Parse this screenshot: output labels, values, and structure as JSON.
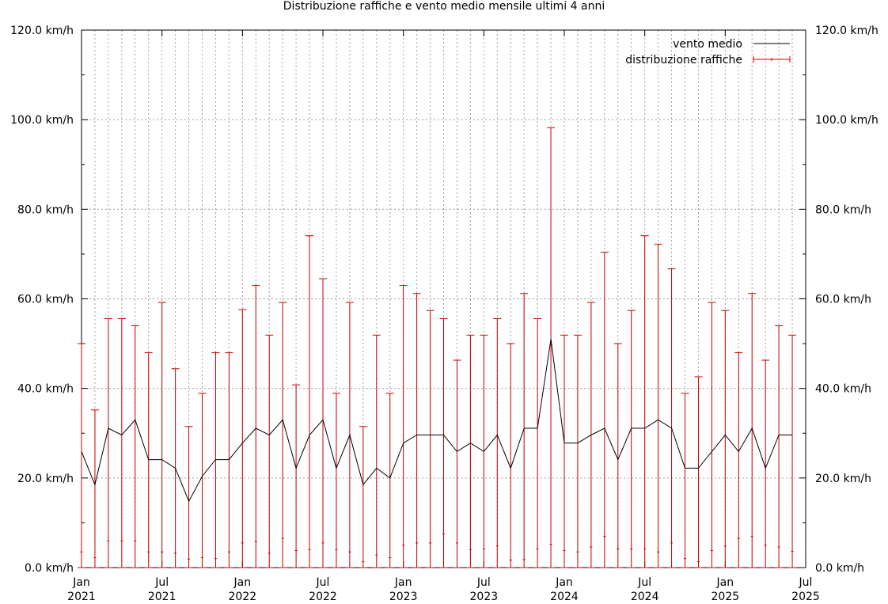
{
  "chart_data": {
    "type": "line",
    "title": "Distribuzione raffiche e vento medio mensile ultimi 4 anni",
    "xlabel": "",
    "ylabel": "",
    "grid": true,
    "legend_position": "top-right",
    "ylim": [
      0,
      120
    ],
    "y_ticks": [
      {
        "value": 0,
        "label": "0.0 km/h"
      },
      {
        "value": 20,
        "label": "20.0 km/h"
      },
      {
        "value": 40,
        "label": "40.0 km/h"
      },
      {
        "value": 60,
        "label": "60.0 km/h"
      },
      {
        "value": 80,
        "label": "80.0 km/h"
      },
      {
        "value": 100,
        "label": "100.0 km/h"
      },
      {
        "value": 120,
        "label": "120.0 km/h"
      }
    ],
    "x_ticks": [
      {
        "month": "2021-01",
        "label1": "Jan",
        "label2": "2021"
      },
      {
        "month": "2021-07",
        "label1": "Jul",
        "label2": "2021"
      },
      {
        "month": "2022-01",
        "label1": "Jan",
        "label2": "2022"
      },
      {
        "month": "2022-07",
        "label1": "Jul",
        "label2": "2022"
      },
      {
        "month": "2023-01",
        "label1": "Jan",
        "label2": "2023"
      },
      {
        "month": "2023-07",
        "label1": "Jul",
        "label2": "2023"
      },
      {
        "month": "2024-01",
        "label1": "Jan",
        "label2": "2024"
      },
      {
        "month": "2024-07",
        "label1": "Jul",
        "label2": "2024"
      },
      {
        "month": "2025-01",
        "label1": "Jan",
        "label2": "2025"
      },
      {
        "month": "2025-07",
        "label1": "Jul",
        "label2": "2025"
      }
    ],
    "x_range": [
      "2021-01",
      "2025-07"
    ],
    "series": [
      {
        "name": "vento medio",
        "color": "#000000",
        "style": "line",
        "x": [
          "2021-01",
          "2021-02",
          "2021-03",
          "2021-04",
          "2021-05",
          "2021-06",
          "2021-07",
          "2021-08",
          "2021-09",
          "2021-10",
          "2021-11",
          "2021-12",
          "2022-01",
          "2022-02",
          "2022-03",
          "2022-04",
          "2022-05",
          "2022-06",
          "2022-07",
          "2022-08",
          "2022-09",
          "2022-10",
          "2022-11",
          "2022-12",
          "2023-01",
          "2023-02",
          "2023-03",
          "2023-04",
          "2023-05",
          "2023-06",
          "2023-07",
          "2023-08",
          "2023-09",
          "2023-10",
          "2023-11",
          "2023-12",
          "2024-01",
          "2024-02",
          "2024-03",
          "2024-04",
          "2024-05",
          "2024-06",
          "2024-07",
          "2024-08",
          "2024-09",
          "2024-10",
          "2024-11",
          "2024-12",
          "2025-01",
          "2025-02",
          "2025-03",
          "2025-04",
          "2025-05",
          "2025-06"
        ],
        "values": [
          25.9,
          18.5,
          31.1,
          29.6,
          33.0,
          24.1,
          24.1,
          22.2,
          14.8,
          20.4,
          24.1,
          24.1,
          27.8,
          31.1,
          29.6,
          33.0,
          22.2,
          29.6,
          33.0,
          22.2,
          29.6,
          18.5,
          22.2,
          20.0,
          27.8,
          29.6,
          29.6,
          29.6,
          25.9,
          27.8,
          25.9,
          29.6,
          22.2,
          31.1,
          31.1,
          51.0,
          27.8,
          27.8,
          29.6,
          31.1,
          24.1,
          31.1,
          31.1,
          33.0,
          31.1,
          22.2,
          22.2,
          25.9,
          29.6,
          25.9,
          31.1,
          22.2,
          29.6,
          29.6
        ]
      },
      {
        "name": "distribuzione raffiche",
        "color": "#cc0000",
        "style": "errorbars",
        "x": [
          "2021-01",
          "2021-02",
          "2021-03",
          "2021-04",
          "2021-05",
          "2021-06",
          "2021-07",
          "2021-08",
          "2021-09",
          "2021-10",
          "2021-11",
          "2021-12",
          "2022-01",
          "2022-02",
          "2022-03",
          "2022-04",
          "2022-05",
          "2022-06",
          "2022-07",
          "2022-08",
          "2022-09",
          "2022-10",
          "2022-11",
          "2022-12",
          "2023-01",
          "2023-02",
          "2023-03",
          "2023-04",
          "2023-05",
          "2023-06",
          "2023-07",
          "2023-08",
          "2023-09",
          "2023-10",
          "2023-11",
          "2023-12",
          "2024-01",
          "2024-02",
          "2024-03",
          "2024-04",
          "2024-05",
          "2024-06",
          "2024-07",
          "2024-08",
          "2024-09",
          "2024-10",
          "2024-11",
          "2024-12",
          "2025-01",
          "2025-02",
          "2025-03",
          "2025-04",
          "2025-05",
          "2025-06"
        ],
        "max": [
          50.0,
          35.2,
          55.6,
          55.6,
          54.0,
          48.0,
          59.2,
          44.4,
          31.5,
          38.9,
          48.0,
          48.0,
          57.6,
          63.0,
          51.9,
          59.2,
          40.8,
          74.1,
          64.5,
          38.9,
          59.2,
          31.5,
          51.9,
          38.9,
          63.0,
          61.2,
          57.4,
          55.6,
          46.3,
          51.9,
          51.9,
          55.6,
          50.0,
          61.2,
          55.6,
          98.2,
          51.9,
          51.9,
          59.2,
          70.4,
          50.0,
          57.4,
          74.1,
          72.2,
          66.7,
          38.9,
          42.6,
          59.2,
          57.4,
          48.0,
          61.2,
          46.3,
          54.0,
          51.9
        ],
        "avg": [
          3.5,
          2.2,
          6.0,
          6.0,
          6.0,
          3.5,
          3.5,
          3.2,
          1.9,
          2.2,
          2.0,
          3.5,
          5.5,
          5.8,
          3.2,
          6.5,
          3.8,
          4.0,
          5.5,
          4.0,
          3.5,
          1.3,
          2.8,
          2.2,
          5.0,
          5.5,
          5.5,
          7.5,
          5.5,
          4.0,
          4.2,
          4.8,
          1.7,
          1.8,
          4.2,
          5.2,
          3.8,
          3.5,
          4.6,
          7.0,
          4.2,
          4.2,
          4.2,
          3.5,
          5.5,
          2.0,
          1.3,
          3.8,
          4.8,
          6.5,
          7.0,
          5.0,
          4.6,
          3.6
        ]
      }
    ]
  }
}
